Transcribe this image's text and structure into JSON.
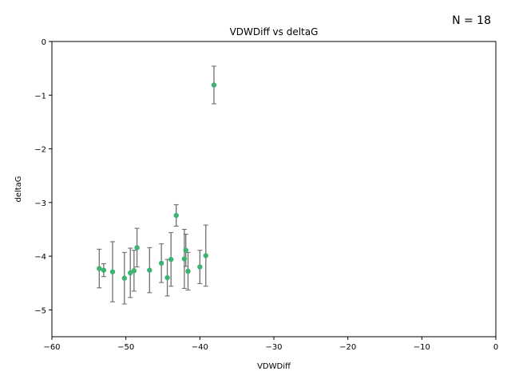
{
  "annotation": "N = 18",
  "chart_data": {
    "type": "scatter",
    "title": "VDWDiff vs deltaG",
    "xlabel": "VDWDiff",
    "ylabel": "deltaG",
    "xlim": [
      -60,
      0
    ],
    "ylim": [
      -5.5,
      0
    ],
    "xticks": [
      -60,
      -50,
      -40,
      -30,
      -20,
      -10,
      0
    ],
    "xtick_labels": [
      "−60",
      "−50",
      "−40",
      "−30",
      "−20",
      "−10",
      "0"
    ],
    "yticks": [
      0,
      -1,
      -2,
      -3,
      -4,
      -5
    ],
    "ytick_labels": [
      "0",
      "−1",
      "−2",
      "−3",
      "−4",
      "−5"
    ],
    "grid": false,
    "point_color": "#3cb371",
    "errorbar_color": "#707070",
    "points": [
      {
        "x": -53.6,
        "y": -4.23,
        "err": 0.36
      },
      {
        "x": -53.0,
        "y": -4.26,
        "err": 0.12
      },
      {
        "x": -51.8,
        "y": -4.29,
        "err": 0.56
      },
      {
        "x": -50.2,
        "y": -4.41,
        "err": 0.48
      },
      {
        "x": -49.4,
        "y": -4.31,
        "err": 0.46
      },
      {
        "x": -48.9,
        "y": -4.27,
        "err": 0.38
      },
      {
        "x": -48.5,
        "y": -3.84,
        "err": 0.36
      },
      {
        "x": -46.8,
        "y": -4.26,
        "err": 0.42
      },
      {
        "x": -45.2,
        "y": -4.13,
        "err": 0.36
      },
      {
        "x": -44.4,
        "y": -4.4,
        "err": 0.34
      },
      {
        "x": -43.9,
        "y": -4.06,
        "err": 0.5
      },
      {
        "x": -43.2,
        "y": -3.24,
        "err": 0.2
      },
      {
        "x": -42.1,
        "y": -4.05,
        "err": 0.55
      },
      {
        "x": -41.9,
        "y": -3.89,
        "err": 0.3
      },
      {
        "x": -41.6,
        "y": -4.28,
        "err": 0.35
      },
      {
        "x": -40.0,
        "y": -4.2,
        "err": 0.31
      },
      {
        "x": -39.2,
        "y": -3.99,
        "err": 0.57
      },
      {
        "x": -38.1,
        "y": -0.81,
        "err": 0.35
      }
    ]
  }
}
